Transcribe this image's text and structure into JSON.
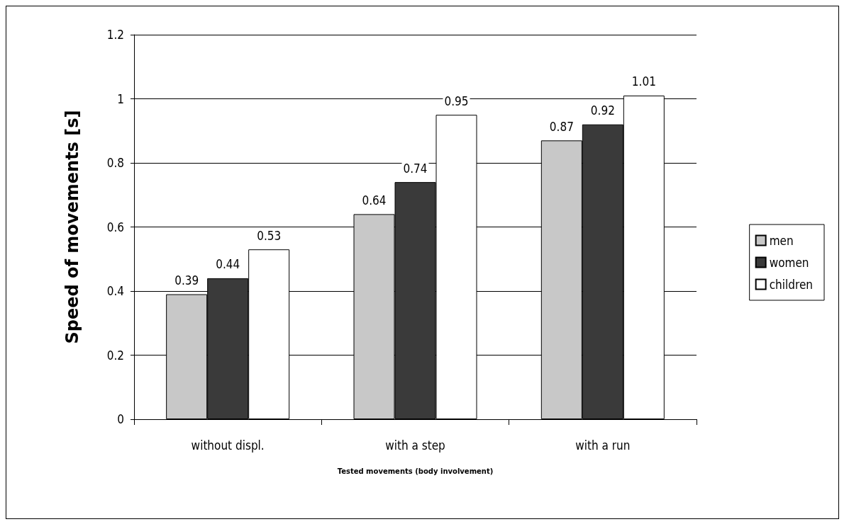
{
  "chart_data": {
    "type": "bar",
    "ylabel": "Speed of movements [s]",
    "xlabel": "Tested movements (body involvement)",
    "categories": [
      "without displ.",
      "with a step",
      "with a run"
    ],
    "series": [
      {
        "name": "men",
        "color": "#c8c8c8",
        "values": [
          0.39,
          0.64,
          0.87
        ]
      },
      {
        "name": "women",
        "color": "#3a3a3a",
        "values": [
          0.44,
          0.74,
          0.92
        ]
      },
      {
        "name": "children",
        "color": "#ffffff",
        "values": [
          0.53,
          0.95,
          1.01
        ]
      }
    ],
    "ylim": [
      0,
      1.2
    ],
    "yticks": [
      0,
      0.2,
      0.4,
      0.6,
      0.8,
      1,
      1.2
    ],
    "grid": "y",
    "legend": "right",
    "data_labels": true
  }
}
